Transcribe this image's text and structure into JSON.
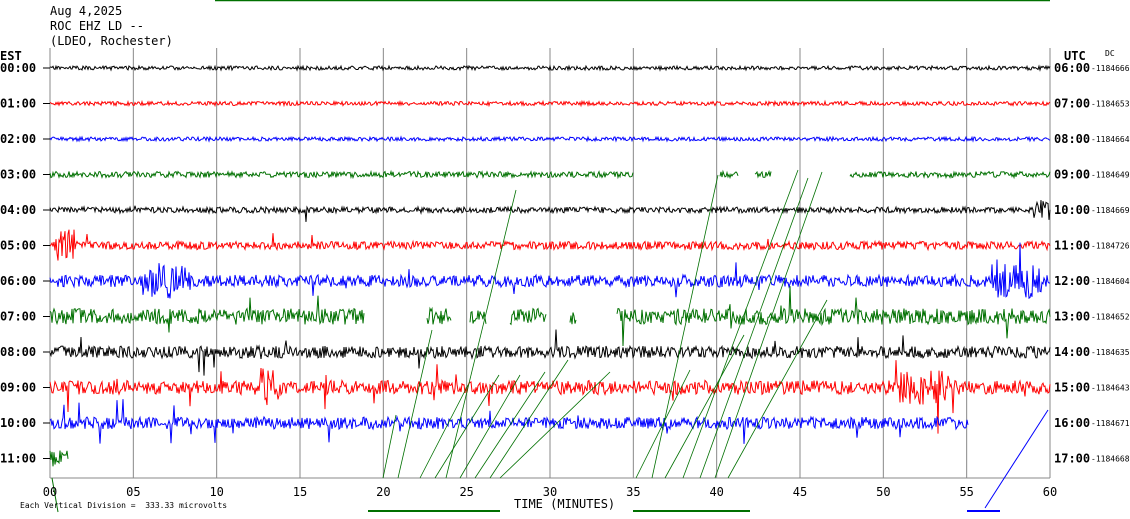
{
  "header": {
    "date": "Aug 4,2025",
    "station": "ROC EHZ LD --",
    "network": "(LDEO, Rochester)"
  },
  "left_tz_label": "EST",
  "right_tz_label": "UTC",
  "dc_label": "DC",
  "footer_note": "Each Vertical Division =  333.33 microvolts",
  "chart_data": {
    "type": "line",
    "title": "",
    "xlabel": "TIME (MINUTES)",
    "ylabel": "",
    "xlim": [
      0,
      60
    ],
    "x_ticks": [
      "00",
      "05",
      "10",
      "15",
      "20",
      "25",
      "30",
      "35",
      "40",
      "45",
      "50",
      "55",
      "60"
    ],
    "grid": true,
    "trace_colors": [
      "#000000",
      "#ff0000",
      "#0000ff",
      "#007000"
    ],
    "rows": [
      {
        "est": "00:00",
        "utc": "06:00",
        "dc": "-1184666",
        "amp": 2,
        "spikes": 0,
        "seed": 11
      },
      {
        "est": "01:00",
        "utc": "07:00",
        "dc": "-1184653",
        "amp": 2,
        "spikes": 0,
        "seed": 23
      },
      {
        "est": "02:00",
        "utc": "08:00",
        "dc": "-1184664",
        "amp": 2,
        "spikes": 0,
        "seed": 37
      },
      {
        "est": "03:00",
        "utc": "09:00",
        "dc": "-1184649",
        "amp": 3,
        "spikes": 0,
        "seed": 41,
        "gaps": [
          [
            35,
            40.2
          ],
          [
            41.3,
            42.3
          ],
          [
            43.3,
            48.0
          ]
        ]
      },
      {
        "est": "04:00",
        "utc": "10:00",
        "dc": "-1184669",
        "amp": 3,
        "spikes": 2,
        "seed": 53,
        "bursts": [
          [
            59,
            60,
            4
          ]
        ]
      },
      {
        "est": "05:00",
        "utc": "11:00",
        "dc": "-1184726",
        "amp": 4,
        "spikes": 8,
        "seed": 67,
        "bursts": [
          [
            0.3,
            1.6,
            4
          ]
        ]
      },
      {
        "est": "06:00",
        "utc": "12:00",
        "dc": "-1184604",
        "amp": 6,
        "spikes": 14,
        "seed": 71,
        "bursts": [
          [
            5.5,
            8.5,
            3
          ],
          [
            56.5,
            59.5,
            3
          ]
        ]
      },
      {
        "est": "07:00",
        "utc": "13:00",
        "dc": "-1184652",
        "amp": 8,
        "spikes": 18,
        "seed": 83,
        "gaps": [
          [
            18.9,
            22.6
          ],
          [
            24.1,
            25.2
          ],
          [
            26.2,
            27.6
          ],
          [
            29.8,
            31.2
          ],
          [
            31.6,
            34.0
          ]
        ]
      },
      {
        "est": "08:00",
        "utc": "14:00",
        "dc": "-1184635",
        "amp": 6,
        "spikes": 16,
        "seed": 97
      },
      {
        "est": "09:00",
        "utc": "15:00",
        "dc": "-1184643",
        "amp": 7,
        "spikes": 22,
        "seed": 101,
        "bursts": [
          [
            12.5,
            13.8,
            3
          ],
          [
            51,
            54,
            2.5
          ]
        ]
      },
      {
        "est": "10:00",
        "utc": "16:00",
        "dc": "-1184671",
        "amp": 6,
        "spikes": 24,
        "seed": 113,
        "end": 55.1
      },
      {
        "est": "11:00",
        "utc": "17:00",
        "dc": "-1184668",
        "amp": 8,
        "spikes": 4,
        "seed": 127,
        "end": 1.1
      }
    ]
  }
}
